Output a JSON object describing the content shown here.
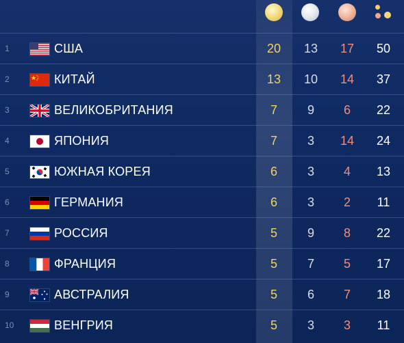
{
  "header": {
    "gold_icon": "gold-medal-icon",
    "silver_icon": "silver-medal-icon",
    "bronze_icon": "bronze-medal-icon",
    "total_icon": "medals-total-icon"
  },
  "colors": {
    "gold": "#f2d55e",
    "silver": "#d9dde6",
    "bronze": "#f28e78",
    "total": "#ffffff",
    "background": "#0f2a62"
  },
  "rows": [
    {
      "rank": "1",
      "flag": "flag-usa",
      "country": "США",
      "gold": "20",
      "silver": "13",
      "bronze": "17",
      "total": "50"
    },
    {
      "rank": "2",
      "flag": "flag-china",
      "country": "КИТАЙ",
      "gold": "13",
      "silver": "10",
      "bronze": "14",
      "total": "37"
    },
    {
      "rank": "3",
      "flag": "flag-uk",
      "country": "ВЕЛИКОБРИТАНИЯ",
      "gold": "7",
      "silver": "9",
      "bronze": "6",
      "total": "22"
    },
    {
      "rank": "4",
      "flag": "flag-japan",
      "country": "ЯПОНИЯ",
      "gold": "7",
      "silver": "3",
      "bronze": "14",
      "total": "24"
    },
    {
      "rank": "5",
      "flag": "flag-south-korea",
      "country": "ЮЖНАЯ КОРЕЯ",
      "gold": "6",
      "silver": "3",
      "bronze": "4",
      "total": "13"
    },
    {
      "rank": "6",
      "flag": "flag-germany",
      "country": "ГЕРМАНИЯ",
      "gold": "6",
      "silver": "3",
      "bronze": "2",
      "total": "11"
    },
    {
      "rank": "7",
      "flag": "flag-russia",
      "country": "РОССИЯ",
      "gold": "5",
      "silver": "9",
      "bronze": "8",
      "total": "22"
    },
    {
      "rank": "8",
      "flag": "flag-france",
      "country": "ФРАНЦИЯ",
      "gold": "5",
      "silver": "7",
      "bronze": "5",
      "total": "17"
    },
    {
      "rank": "9",
      "flag": "flag-australia",
      "country": "АВСТРАЛИЯ",
      "gold": "5",
      "silver": "6",
      "bronze": "7",
      "total": "18"
    },
    {
      "rank": "10",
      "flag": "flag-hungary",
      "country": "ВЕНГРИЯ",
      "gold": "5",
      "silver": "3",
      "bronze": "3",
      "total": "11"
    }
  ]
}
